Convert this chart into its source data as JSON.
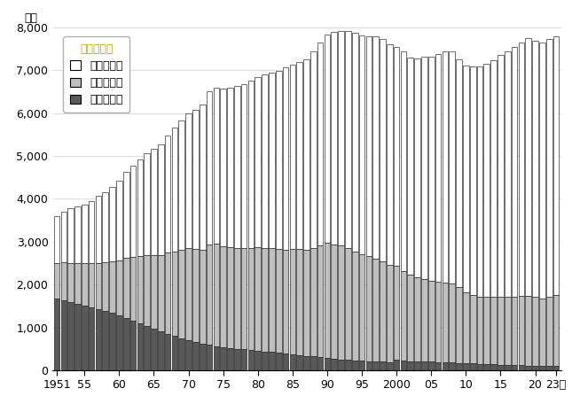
{
  "years": [
    1951,
    1952,
    1953,
    1954,
    1955,
    1956,
    1957,
    1958,
    1959,
    1960,
    1961,
    1962,
    1963,
    1964,
    1965,
    1966,
    1967,
    1968,
    1969,
    1970,
    1971,
    1972,
    1973,
    1974,
    1975,
    1976,
    1977,
    1978,
    1979,
    1980,
    1981,
    1982,
    1983,
    1984,
    1985,
    1986,
    1987,
    1988,
    1989,
    1990,
    1991,
    1992,
    1993,
    1994,
    1995,
    1996,
    1997,
    1998,
    1999,
    2000,
    2001,
    2002,
    2003,
    2004,
    2005,
    2006,
    2007,
    2008,
    2009,
    2010,
    2011,
    2012,
    2013,
    2014,
    2015,
    2016,
    2017,
    2018,
    2019,
    2020,
    2021,
    2022,
    2023
  ],
  "primary": [
    1681,
    1641,
    1593,
    1547,
    1503,
    1461,
    1420,
    1382,
    1340,
    1283,
    1222,
    1155,
    1096,
    1028,
    970,
    909,
    850,
    800,
    754,
    700,
    657,
    625,
    594,
    566,
    540,
    523,
    506,
    488,
    472,
    462,
    440,
    425,
    409,
    394,
    375,
    357,
    340,
    322,
    303,
    285,
    269,
    255,
    245,
    234,
    222,
    212,
    204,
    197,
    192,
    244,
    225,
    215,
    208,
    203,
    197,
    191,
    185,
    181,
    175,
    166,
    160,
    155,
    149,
    143,
    133,
    126,
    120,
    117,
    113,
    110,
    108,
    108,
    110
  ],
  "secondary": [
    830,
    872,
    916,
    952,
    990,
    1030,
    1090,
    1130,
    1200,
    1290,
    1395,
    1490,
    1572,
    1655,
    1715,
    1785,
    1895,
    1975,
    2060,
    2150,
    2165,
    2195,
    2340,
    2385,
    2355,
    2345,
    2345,
    2360,
    2390,
    2410,
    2420,
    2420,
    2415,
    2425,
    2455,
    2465,
    2475,
    2540,
    2610,
    2700,
    2665,
    2660,
    2605,
    2545,
    2490,
    2445,
    2400,
    2345,
    2265,
    2195,
    2100,
    2015,
    1965,
    1925,
    1895,
    1875,
    1865,
    1845,
    1765,
    1655,
    1595,
    1565,
    1565,
    1565,
    1575,
    1585,
    1595,
    1615,
    1625,
    1605,
    1575,
    1615,
    1645
  ],
  "tertiary": [
    1086,
    1185,
    1265,
    1330,
    1380,
    1455,
    1560,
    1635,
    1730,
    1855,
    2005,
    2125,
    2260,
    2375,
    2473,
    2570,
    2730,
    2880,
    3015,
    3150,
    3260,
    3375,
    3570,
    3650,
    3680,
    3728,
    3778,
    3820,
    3893,
    3975,
    4040,
    4105,
    4165,
    4250,
    4305,
    4375,
    4440,
    4575,
    4725,
    4850,
    4965,
    5010,
    5060,
    5105,
    5100,
    5140,
    5185,
    5195,
    5150,
    5100,
    5115,
    5075,
    5095,
    5180,
    5235,
    5320,
    5400,
    5425,
    5310,
    5295,
    5330,
    5360,
    5445,
    5530,
    5640,
    5720,
    5820,
    5920,
    6015,
    5965,
    5955,
    6005,
    6030
  ],
  "color_primary": "#595959",
  "color_secondary": "#bfbfbf",
  "color_tertiary": "#ffffff",
  "edge_color": "#000000",
  "ylim": [
    0,
    8000
  ],
  "yticks": [
    0,
    1000,
    2000,
    3000,
    4000,
    5000,
    6000,
    7000,
    8000
  ],
  "xtick_labels": [
    "1951",
    "55",
    "60",
    "65",
    "70",
    "75",
    "80",
    "85",
    "90",
    "95",
    "2000",
    "05",
    "10",
    "15",
    "20",
    "23年"
  ],
  "xtick_positions": [
    1951,
    1955,
    1960,
    1965,
    1970,
    1975,
    1980,
    1985,
    1990,
    1995,
    2000,
    2005,
    2010,
    2015,
    2020,
    2023
  ],
  "ylabel": "万人",
  "legend_title": "上から順に",
  "legend_item_tertiary": "第三次産業",
  "legend_item_secondary": "第二次産業",
  "legend_item_primary": "第一次産業",
  "legend_colors": [
    "#ffffff",
    "#bfbfbf",
    "#595959"
  ],
  "background_color": "#ffffff",
  "bar_width": 0.85,
  "linewidth": 0.4
}
